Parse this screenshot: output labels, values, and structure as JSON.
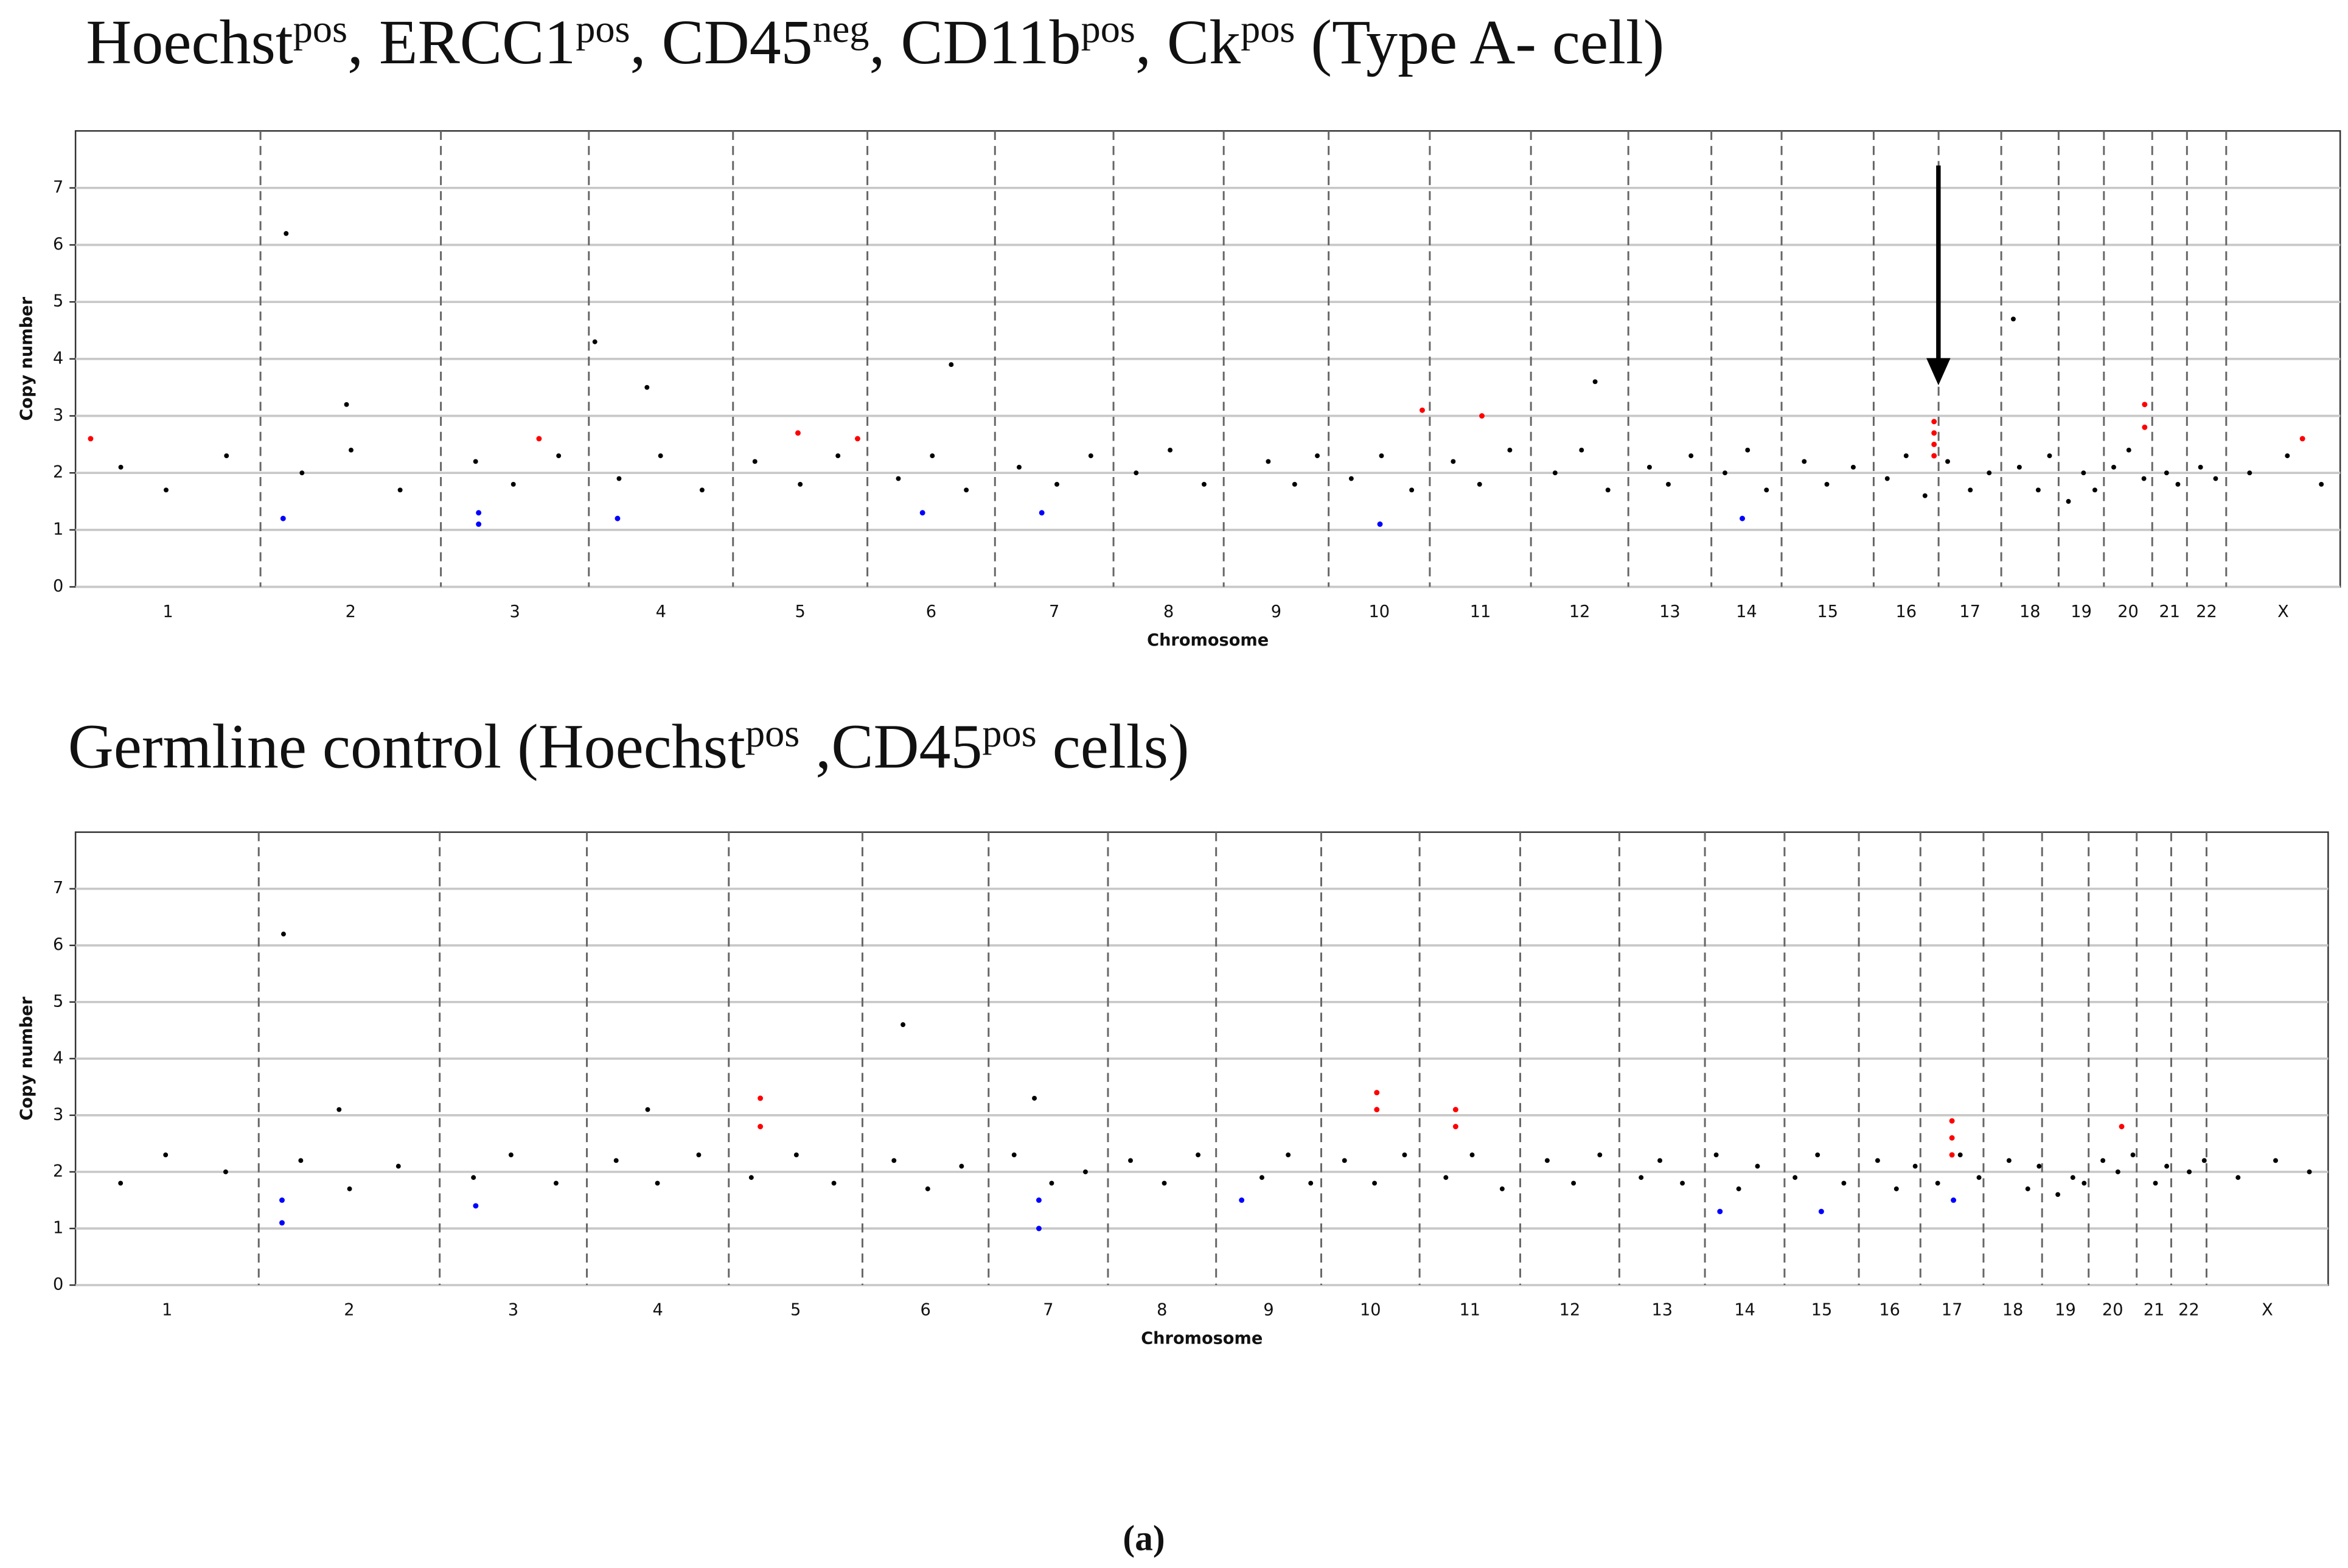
{
  "chart_data": [
    {
      "type": "scatter",
      "title": [
        {
          "text": "Hoechst"
        },
        {
          "text": "pos",
          "sup": true
        },
        {
          "text": ", ERCC1"
        },
        {
          "text": "pos",
          "sup": true
        },
        {
          "text": ", CD45"
        },
        {
          "text": "neg",
          "sup": true
        },
        {
          "text": ", CD11b"
        },
        {
          "text": "pos",
          "sup": true
        },
        {
          "text": ", Ck"
        },
        {
          "text": "pos",
          "sup": true
        },
        {
          "text": " (Type A- cell)"
        }
      ],
      "x_label": "Chromosome",
      "y_label": "Copy number",
      "categories": [
        "1",
        "2",
        "3",
        "4",
        "5",
        "6",
        "7",
        "8",
        "9",
        "10",
        "11",
        "12",
        "13",
        "14",
        "15",
        "16",
        "17",
        "18",
        "19",
        "20",
        "21",
        "22",
        "X"
      ],
      "xlim": [
        0,
        3000
      ],
      "xticks": [
        245,
        484,
        680,
        871,
        1049,
        1218,
        1375,
        1521,
        1660,
        1794,
        1928,
        2057,
        2167,
        2260,
        2382,
        2468,
        2551,
        2627,
        2687,
        2751,
        2797,
        2849
      ],
      "ylim": [
        0,
        8
      ],
      "yticks": [
        0,
        1,
        2,
        3,
        4,
        5,
        6,
        7
      ],
      "grid": true,
      "series": [
        {
          "color": "#000000",
          "x": [
            60,
            120,
            200,
            300,
            365,
            430,
            530,
            580,
            640,
            720,
            775,
            830,
            900,
            960,
            1010,
            1090,
            1135,
            1180,
            1250,
            1300,
            1345,
            1405,
            1450,
            1495,
            1580,
            1615,
            1645,
            1690,
            1730,
            1770,
            1825,
            1860,
            1900,
            1960,
            1995,
            2030,
            2085,
            2110,
            2140,
            2185,
            2215,
            2240,
            2290,
            2320,
            2355,
            2400,
            2425,
            2450,
            2480,
            2510,
            2535,
            2575,
            2600,
            2615,
            2640,
            2660,
            2675,
            2700,
            2720,
            2740,
            2770,
            2785,
            2815,
            2835,
            2880,
            2930,
            2975,
            279,
            1160,
            2567,
            2013,
            757,
            688,
            359
          ],
          "values": [
            2.1,
            1.7,
            2.3,
            2.0,
            2.4,
            1.7,
            2.2,
            1.8,
            2.3,
            1.9,
            2.3,
            1.7,
            2.2,
            1.8,
            2.3,
            1.9,
            2.3,
            1.7,
            2.1,
            1.8,
            2.3,
            2.0,
            2.4,
            1.8,
            2.2,
            1.8,
            2.3,
            1.9,
            2.3,
            1.7,
            2.2,
            1.8,
            2.4,
            2.0,
            2.4,
            1.7,
            2.1,
            1.8,
            2.3,
            2.0,
            2.4,
            1.7,
            2.2,
            1.8,
            2.1,
            1.9,
            2.3,
            1.6,
            2.2,
            1.7,
            2.0,
            2.1,
            1.7,
            2.3,
            1.5,
            2.0,
            1.7,
            2.1,
            2.4,
            1.9,
            2.0,
            1.8,
            2.1,
            1.9,
            2.0,
            2.3,
            1.8,
            6.2,
            3.9,
            4.7,
            3.6,
            3.5,
            4.3,
            3.2
          ]
        },
        {
          "color": "#ff0000",
          "x": [
            20,
            614,
            957,
            1036,
            1784,
            1863,
            2462,
            2462,
            2462,
            2462,
            2741,
            2741,
            2950
          ],
          "values": [
            2.6,
            2.6,
            2.7,
            2.6,
            3.1,
            3.0,
            2.3,
            2.5,
            2.7,
            2.9,
            2.8,
            3.2,
            2.6
          ]
        },
        {
          "color": "#0000ff",
          "x": [
            275,
            534,
            534,
            718,
            1122,
            1280,
            1728,
            2208
          ],
          "values": [
            1.2,
            1.3,
            1.1,
            1.2,
            1.3,
            1.3,
            1.1,
            1.2
          ]
        }
      ]
    },
    {
      "type": "scatter",
      "title": [
        {
          "text": "Germline control (Hoechst"
        },
        {
          "text": "pos",
          "sup": true
        },
        {
          "text": " ,CD45"
        },
        {
          "text": "pos",
          "sup": true
        },
        {
          "text": " cells)"
        }
      ],
      "x_label": "Chromosome",
      "y_label": "Copy number",
      "categories": [
        "1",
        "2",
        "3",
        "4",
        "5",
        "6",
        "7",
        "8",
        "9",
        "10",
        "11",
        "12",
        "13",
        "14",
        "15",
        "16",
        "17",
        "18",
        "19",
        "20",
        "21",
        "22",
        "X"
      ],
      "xlim": [
        0,
        3000
      ],
      "xticks": [
        244,
        485,
        681,
        870,
        1048,
        1216,
        1375,
        1519,
        1659,
        1790,
        1924,
        2056,
        2170,
        2276,
        2375,
        2457,
        2541,
        2619,
        2681,
        2745,
        2791,
        2838
      ],
      "ylim": [
        0,
        8
      ],
      "yticks": [
        0,
        1,
        2,
        3,
        4,
        5,
        6,
        7
      ],
      "grid": true,
      "series": [
        {
          "color": "#000000",
          "x": [
            60,
            120,
            200,
            300,
            365,
            430,
            530,
            580,
            640,
            720,
            775,
            830,
            900,
            960,
            1010,
            1090,
            1135,
            1180,
            1250,
            1300,
            1345,
            1405,
            1450,
            1495,
            1580,
            1615,
            1645,
            1690,
            1730,
            1770,
            1825,
            1860,
            1900,
            1960,
            1995,
            2030,
            2085,
            2110,
            2140,
            2185,
            2215,
            2240,
            2290,
            2320,
            2355,
            2400,
            2425,
            2450,
            2480,
            2510,
            2535,
            2575,
            2600,
            2615,
            2640,
            2660,
            2675,
            2700,
            2720,
            2740,
            2770,
            2785,
            2815,
            2835,
            2880,
            2930,
            2975,
            277,
            1102,
            1277,
            762,
            351
          ],
          "values": [
            1.8,
            2.3,
            2.0,
            2.2,
            1.7,
            2.1,
            1.9,
            2.3,
            1.8,
            2.2,
            1.8,
            2.3,
            1.9,
            2.3,
            1.8,
            2.2,
            1.7,
            2.1,
            2.3,
            1.8,
            2.0,
            2.2,
            1.8,
            2.3,
            1.9,
            2.3,
            1.8,
            2.2,
            1.8,
            2.3,
            1.9,
            2.3,
            1.7,
            2.2,
            1.8,
            2.3,
            1.9,
            2.2,
            1.8,
            2.3,
            1.7,
            2.1,
            1.9,
            2.3,
            1.8,
            2.2,
            1.7,
            2.1,
            1.8,
            2.3,
            1.9,
            2.2,
            1.7,
            2.1,
            1.6,
            1.9,
            1.8,
            2.2,
            2.0,
            2.3,
            1.8,
            2.1,
            2.0,
            2.2,
            1.9,
            2.2,
            2.0,
            6.2,
            4.6,
            3.3,
            3.1,
            3.1
          ]
        },
        {
          "color": "#ff0000",
          "x": [
            912,
            912,
            1733,
            1733,
            1838,
            1838,
            2499,
            2499,
            2499,
            2725
          ],
          "values": [
            3.3,
            2.8,
            3.4,
            3.1,
            3.1,
            2.8,
            2.3,
            2.6,
            2.9,
            2.8
          ]
        },
        {
          "color": "#0000ff",
          "x": [
            275,
            275,
            533,
            1283,
            1283,
            1553,
            2190,
            2325,
            2501
          ],
          "values": [
            1.5,
            1.1,
            1.4,
            1.5,
            1.0,
            1.5,
            1.3,
            1.3,
            1.5
          ]
        }
      ]
    }
  ],
  "caption": "(a)"
}
